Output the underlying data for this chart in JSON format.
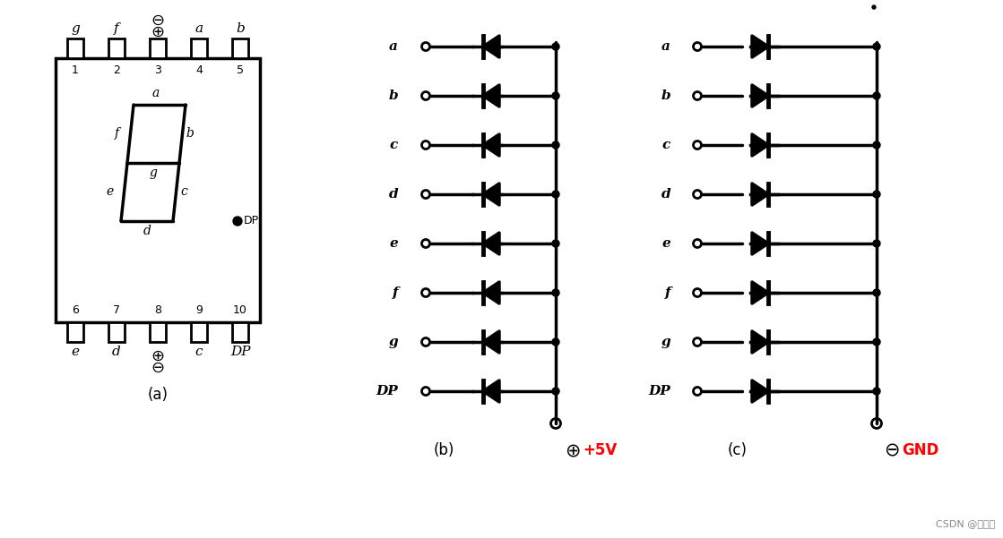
{
  "bg_color": "#ffffff",
  "text_color": "#000000",
  "line_color": "#000000",
  "red_color": "#ff0000",
  "gray_color": "#888888",
  "segments": [
    "a",
    "b",
    "c",
    "d",
    "e",
    "f",
    "g",
    "DP"
  ],
  "label_a": "(a)",
  "label_b": "(b)",
  "label_c": "(c)",
  "plus5v": "+5V",
  "gnd": "GND",
  "watermark": "CSDN @原有理",
  "pin_top": [
    "g",
    "f",
    "",
    "a",
    "b"
  ],
  "pin_bottom": [
    "e",
    "d",
    "",
    "c",
    "DP"
  ],
  "pin_numbers_top": [
    "1",
    "2",
    "3",
    "4",
    "5"
  ],
  "pin_numbers_bottom": [
    "6",
    "7",
    "8",
    "9",
    "10"
  ],
  "figsize": [
    11.19,
    6.01
  ],
  "dpi": 100
}
